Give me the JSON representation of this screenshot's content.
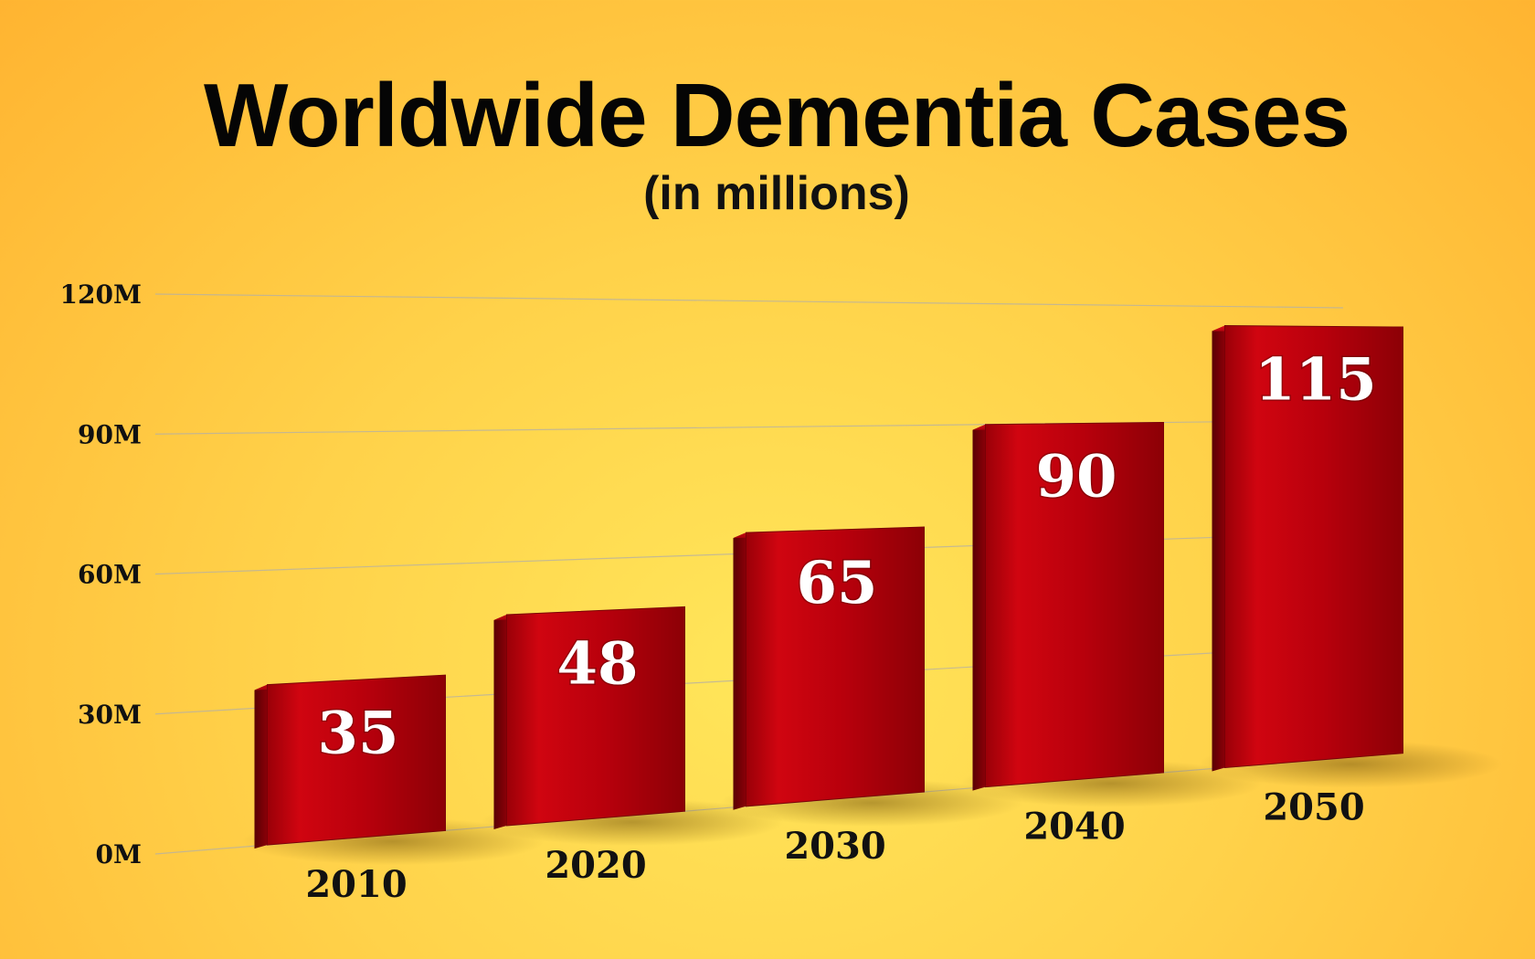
{
  "chart_data": {
    "type": "bar",
    "title": "Worldwide Dementia Cases",
    "subtitle": "(in millions)",
    "categories": [
      "2010",
      "2020",
      "2030",
      "2040",
      "2050"
    ],
    "values": [
      35,
      48,
      65,
      90,
      115
    ],
    "value_labels": [
      "35",
      "48",
      "65",
      "90",
      "115"
    ],
    "y_ticks": [
      "0M",
      "30M",
      "60M",
      "90M",
      "120M"
    ],
    "y_tick_values": [
      0,
      30,
      60,
      90,
      120
    ],
    "ylim": [
      0,
      120
    ],
    "xlabel": "",
    "ylabel": "",
    "grid": true,
    "bar_color": "#c00010",
    "background_color": "#ffd24a"
  }
}
